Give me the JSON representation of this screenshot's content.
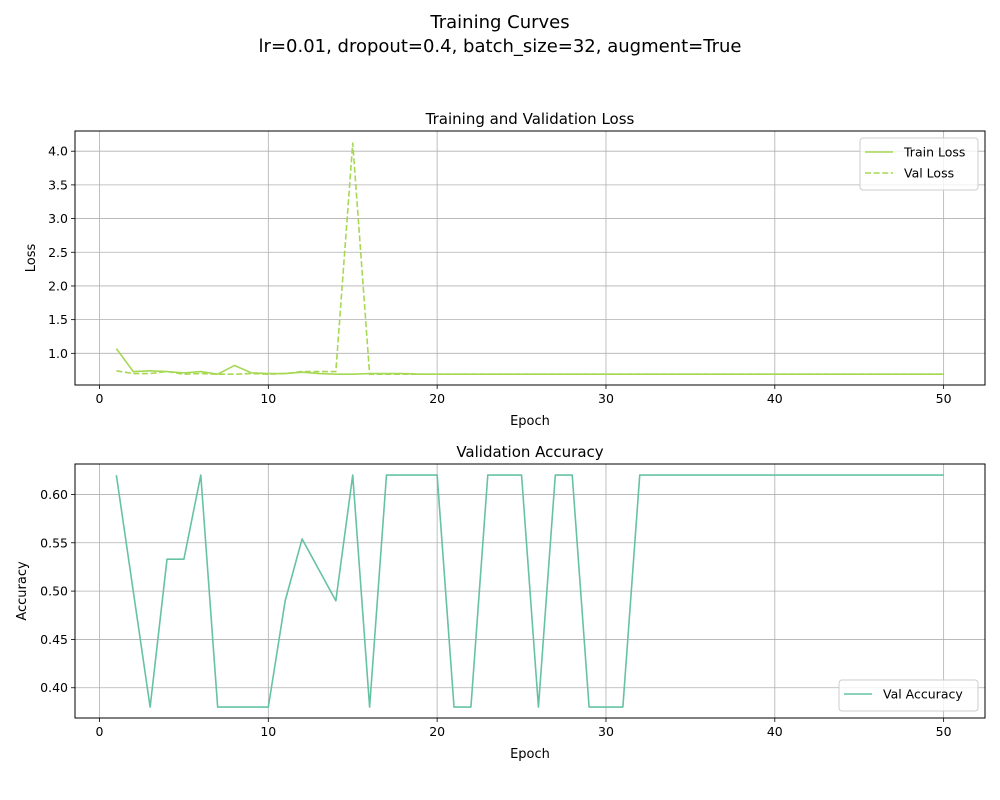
{
  "figure": {
    "suptitle_line1": "Training Curves",
    "suptitle_line2": "lr=0.01, dropout=0.4, batch_size=32, augment=True"
  },
  "chart_data": [
    {
      "type": "line",
      "title": "Training and Validation Loss",
      "xlabel": "Epoch",
      "ylabel": "Loss",
      "xlim": [
        -1.45,
        52.45
      ],
      "ylim": [
        0.53,
        4.3
      ],
      "xticks": [
        0,
        10,
        20,
        30,
        40,
        50
      ],
      "yticks": [
        1.0,
        1.5,
        2.0,
        2.5,
        3.0,
        3.5,
        4.0
      ],
      "ytick_labels": [
        "1.0",
        "1.5",
        "2.0",
        "2.5",
        "3.0",
        "3.5",
        "4.0"
      ],
      "grid": true,
      "legend_position": "top-right",
      "x": [
        1,
        2,
        3,
        4,
        5,
        6,
        7,
        8,
        9,
        10,
        11,
        12,
        13,
        14,
        15,
        16,
        17,
        18,
        19,
        20,
        21,
        22,
        23,
        24,
        25,
        26,
        27,
        28,
        29,
        30,
        31,
        32,
        33,
        34,
        35,
        36,
        37,
        38,
        39,
        40,
        41,
        42,
        43,
        44,
        45,
        46,
        47,
        48,
        49,
        50
      ],
      "series": [
        {
          "name": "Train Loss",
          "color": "#a6d854",
          "dash": "solid",
          "values": [
            1.07,
            0.73,
            0.74,
            0.73,
            0.71,
            0.73,
            0.69,
            0.82,
            0.71,
            0.7,
            0.7,
            0.72,
            0.7,
            0.69,
            0.69,
            0.7,
            0.7,
            0.7,
            0.69,
            0.69,
            0.69,
            0.69,
            0.69,
            0.69,
            0.69,
            0.69,
            0.69,
            0.69,
            0.69,
            0.69,
            0.69,
            0.69,
            0.69,
            0.69,
            0.69,
            0.69,
            0.69,
            0.69,
            0.69,
            0.69,
            0.69,
            0.69,
            0.69,
            0.69,
            0.69,
            0.69,
            0.69,
            0.69,
            0.69,
            0.69
          ]
        },
        {
          "name": "Val Loss",
          "color": "#a6d854",
          "dash": "dashed",
          "values": [
            0.74,
            0.7,
            0.7,
            0.73,
            0.69,
            0.7,
            0.69,
            0.69,
            0.7,
            0.69,
            0.7,
            0.73,
            0.73,
            0.73,
            4.12,
            0.69,
            0.69,
            0.69,
            0.69,
            0.69,
            0.69,
            0.69,
            0.69,
            0.69,
            0.69,
            0.69,
            0.69,
            0.69,
            0.69,
            0.69,
            0.69,
            0.69,
            0.69,
            0.69,
            0.69,
            0.69,
            0.69,
            0.69,
            0.69,
            0.69,
            0.69,
            0.69,
            0.69,
            0.69,
            0.69,
            0.69,
            0.69,
            0.69,
            0.69,
            0.69
          ]
        }
      ]
    },
    {
      "type": "line",
      "title": "Validation Accuracy",
      "xlabel": "Epoch",
      "ylabel": "Accuracy",
      "xlim": [
        -1.45,
        52.45
      ],
      "ylim": [
        0.3687,
        0.6315
      ],
      "xticks": [
        0,
        10,
        20,
        30,
        40,
        50
      ],
      "yticks": [
        0.4,
        0.45,
        0.5,
        0.55,
        0.6
      ],
      "ytick_labels": [
        "0.40",
        "0.45",
        "0.50",
        "0.55",
        "0.60"
      ],
      "grid": true,
      "legend_position": "bottom-right",
      "x": [
        1,
        2,
        3,
        4,
        5,
        6,
        7,
        8,
        9,
        10,
        11,
        12,
        13,
        14,
        15,
        16,
        17,
        18,
        19,
        20,
        21,
        22,
        23,
        24,
        25,
        26,
        27,
        28,
        29,
        30,
        31,
        32,
        33,
        34,
        35,
        36,
        37,
        38,
        39,
        40,
        41,
        42,
        43,
        44,
        45,
        46,
        47,
        48,
        49,
        50
      ],
      "series": [
        {
          "name": "Val Accuracy",
          "color": "#66c2a5",
          "dash": "solid",
          "values": [
            0.62,
            0.5,
            0.38,
            0.533,
            0.533,
            0.62,
            0.38,
            0.38,
            0.38,
            0.38,
            0.49,
            0.554,
            0.522,
            0.49,
            0.62,
            0.38,
            0.62,
            0.62,
            0.62,
            0.62,
            0.38,
            0.38,
            0.62,
            0.62,
            0.62,
            0.38,
            0.62,
            0.62,
            0.38,
            0.38,
            0.38,
            0.62,
            0.62,
            0.62,
            0.62,
            0.62,
            0.62,
            0.62,
            0.62,
            0.62,
            0.62,
            0.62,
            0.62,
            0.62,
            0.62,
            0.62,
            0.62,
            0.62,
            0.62,
            0.62
          ]
        }
      ]
    }
  ]
}
